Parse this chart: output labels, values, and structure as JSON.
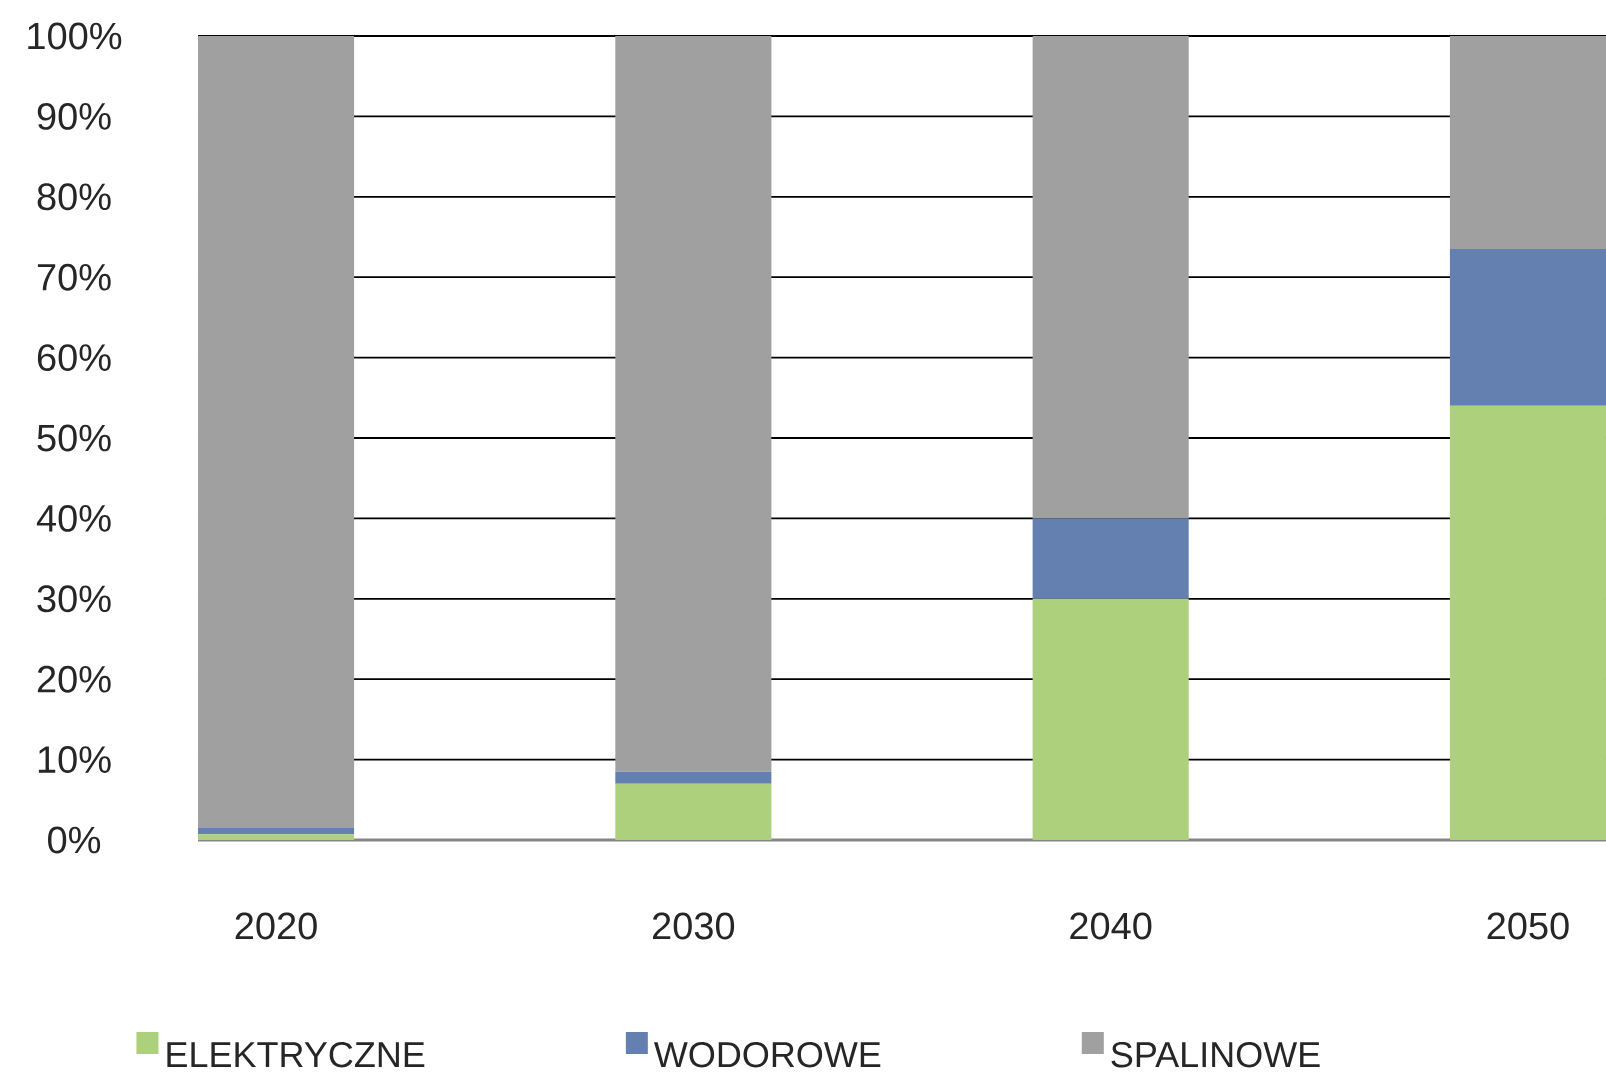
{
  "chart_data": {
    "type": "bar",
    "stacked": true,
    "categories": [
      "2020",
      "2030",
      "2040",
      "2050"
    ],
    "series": [
      {
        "name": "ELEKTRYCZNE",
        "color": "#acd07c",
        "values": [
          0.7,
          7,
          30,
          54
        ]
      },
      {
        "name": "WODOROWE",
        "color": "#6480b0",
        "values": [
          0.8,
          1.5,
          10,
          19.5
        ]
      },
      {
        "name": "SPALINOWE",
        "color": "#a0a0a0",
        "values": [
          98.5,
          91.5,
          60,
          26.5
        ]
      }
    ],
    "ylim": [
      0,
      100
    ],
    "yticks": [
      {
        "value": 0,
        "label": "0%"
      },
      {
        "value": 10,
        "label": "10%"
      },
      {
        "value": 20,
        "label": "20%"
      },
      {
        "value": 30,
        "label": "30%"
      },
      {
        "value": 40,
        "label": "40%"
      },
      {
        "value": 50,
        "label": "50%"
      },
      {
        "value": 60,
        "label": "60%"
      },
      {
        "value": 70,
        "label": "70%"
      },
      {
        "value": 80,
        "label": "80%"
      },
      {
        "value": 90,
        "label": "90%"
      },
      {
        "value": 100,
        "label": "100%"
      }
    ],
    "grid": "y",
    "legend": "bottom"
  }
}
